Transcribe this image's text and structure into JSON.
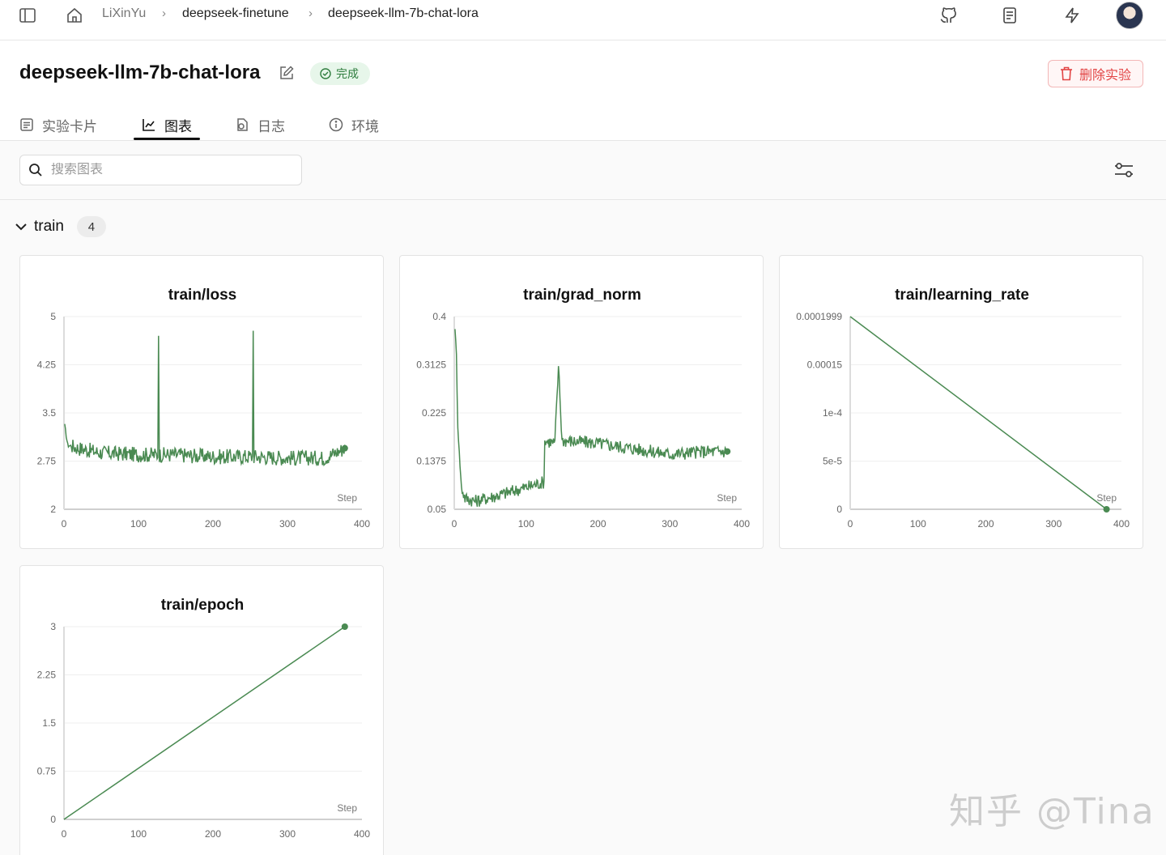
{
  "breadcrumb": {
    "user": "LiXinYu",
    "project": "deepseek-finetune",
    "experiment": "deepseek-llm-7b-chat-lora"
  },
  "header": {
    "title": "deepseek-llm-7b-chat-lora",
    "status": "完成",
    "delete_label": "删除实验"
  },
  "tabs": [
    {
      "label": "实验卡片",
      "icon": "card-icon"
    },
    {
      "label": "图表",
      "icon": "line-chart-icon",
      "active": true
    },
    {
      "label": "日志",
      "icon": "log-icon"
    },
    {
      "label": "环境",
      "icon": "info-icon"
    }
  ],
  "search": {
    "placeholder": "搜索图表",
    "value": ""
  },
  "group": {
    "name": "train",
    "count": "4"
  },
  "watermark": "知乎 @Tina",
  "colors": {
    "series": "#4a8a52",
    "status_bg": "#e7f6ea",
    "delete": "#e24444"
  },
  "chart_data": [
    {
      "type": "line",
      "title": "train/loss",
      "xlabel": "Step",
      "xlim": [
        0,
        400
      ],
      "ylim": [
        2,
        5
      ],
      "xticks": [
        "0",
        "100",
        "200",
        "300",
        "400"
      ],
      "yticks": [
        "5",
        "4.25",
        "3.5",
        "2.75",
        "2"
      ],
      "series": [
        {
          "x": [
            1,
            5,
            20,
            50,
            100,
            126,
            127,
            128,
            150,
            200,
            253,
            254,
            255,
            300,
            350,
            377
          ],
          "y": [
            3.3,
            3.0,
            2.95,
            2.88,
            2.85,
            2.85,
            4.7,
            2.85,
            2.85,
            2.82,
            2.82,
            4.78,
            2.82,
            2.8,
            2.8,
            2.95
          ]
        }
      ]
    },
    {
      "type": "line",
      "title": "train/grad_norm",
      "xlabel": "Step",
      "xlim": [
        0,
        400
      ],
      "ylim": [
        0.05,
        0.4
      ],
      "xticks": [
        "0",
        "100",
        "200",
        "300",
        "400"
      ],
      "yticks": [
        "0.4",
        "0.3125",
        "0.225",
        "0.1375",
        "0.05"
      ],
      "series": [
        {
          "x": [
            1,
            3,
            5,
            8,
            10,
            15,
            30,
            60,
            100,
            125,
            126,
            140,
            145,
            150,
            200,
            250,
            300,
            350,
            380
          ],
          "y": [
            0.38,
            0.33,
            0.2,
            0.13,
            0.09,
            0.07,
            0.065,
            0.075,
            0.09,
            0.1,
            0.175,
            0.17,
            0.31,
            0.175,
            0.17,
            0.16,
            0.15,
            0.155,
            0.155
          ]
        }
      ]
    },
    {
      "type": "line",
      "title": "train/learning_rate",
      "xlabel": "Step",
      "xlim": [
        0,
        400
      ],
      "ylim": [
        0,
        0.0001999
      ],
      "xticks": [
        "0",
        "100",
        "200",
        "300",
        "400"
      ],
      "yticks": [
        "0.0001999",
        "0.00015",
        "1e-4",
        "5e-5",
        "0"
      ],
      "series": [
        {
          "x": [
            0,
            378
          ],
          "y": [
            0.0001999,
            0
          ]
        }
      ]
    },
    {
      "type": "line",
      "title": "train/epoch",
      "xlabel": "Step",
      "xlim": [
        0,
        400
      ],
      "ylim": [
        0,
        3
      ],
      "xticks": [
        "0",
        "100",
        "200",
        "300",
        "400"
      ],
      "yticks": [
        "3",
        "2.25",
        "1.5",
        "0.75",
        "0"
      ],
      "series": [
        {
          "x": [
            0,
            377
          ],
          "y": [
            0,
            3
          ]
        }
      ]
    }
  ]
}
